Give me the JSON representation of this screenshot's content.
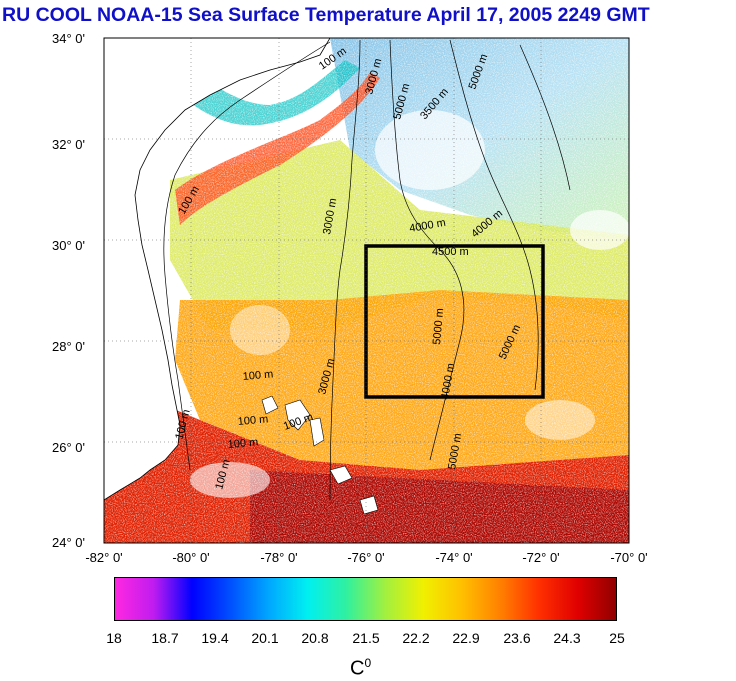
{
  "title": "RU COOL  NOAA-15 Sea Surface Temperature April 17, 2005 2249 GMT",
  "map": {
    "lat_labels": [
      "34° 0'",
      "32° 0'",
      "30° 0'",
      "28° 0'",
      "26° 0'",
      "24° 0'"
    ],
    "lon_labels": [
      "-82° 0'",
      "-80° 0'",
      "-78° 0'",
      "-76° 0'",
      "-74° 0'",
      "-72° 0'",
      "-70° 0'"
    ],
    "bbox_lon": [
      -82,
      -70
    ],
    "bbox_lat": [
      24,
      34
    ],
    "study_box": {
      "lon": [
        -76,
        -72
      ],
      "lat": [
        27,
        30
      ]
    },
    "contour_labels": [
      "100 m",
      "100 m",
      "100 m",
      "100 m",
      "100 m",
      "100 m",
      "100 m",
      "100 m",
      "3000 m",
      "3000 m",
      "3000 m",
      "3500 m",
      "4000 m",
      "4000 m",
      "4000 m",
      "4500 m",
      "5000 m",
      "5000 m",
      "5000 m",
      "5000 m",
      "5000 m"
    ]
  },
  "colorbar": {
    "ticks": [
      "18",
      "18.7",
      "19.4",
      "20.1",
      "20.8",
      "21.5",
      "22.2",
      "22.9",
      "23.6",
      "24.3",
      "25"
    ],
    "unit": "C",
    "unit_sup": "0",
    "colors": [
      "#ff28e0",
      "#c01cf0",
      "#0000ff",
      "#0050ff",
      "#00a8ff",
      "#00f0f0",
      "#30f0a0",
      "#a0f040",
      "#f0f000",
      "#ffc000",
      "#ff8000",
      "#ff3000",
      "#e00000",
      "#900000"
    ]
  }
}
